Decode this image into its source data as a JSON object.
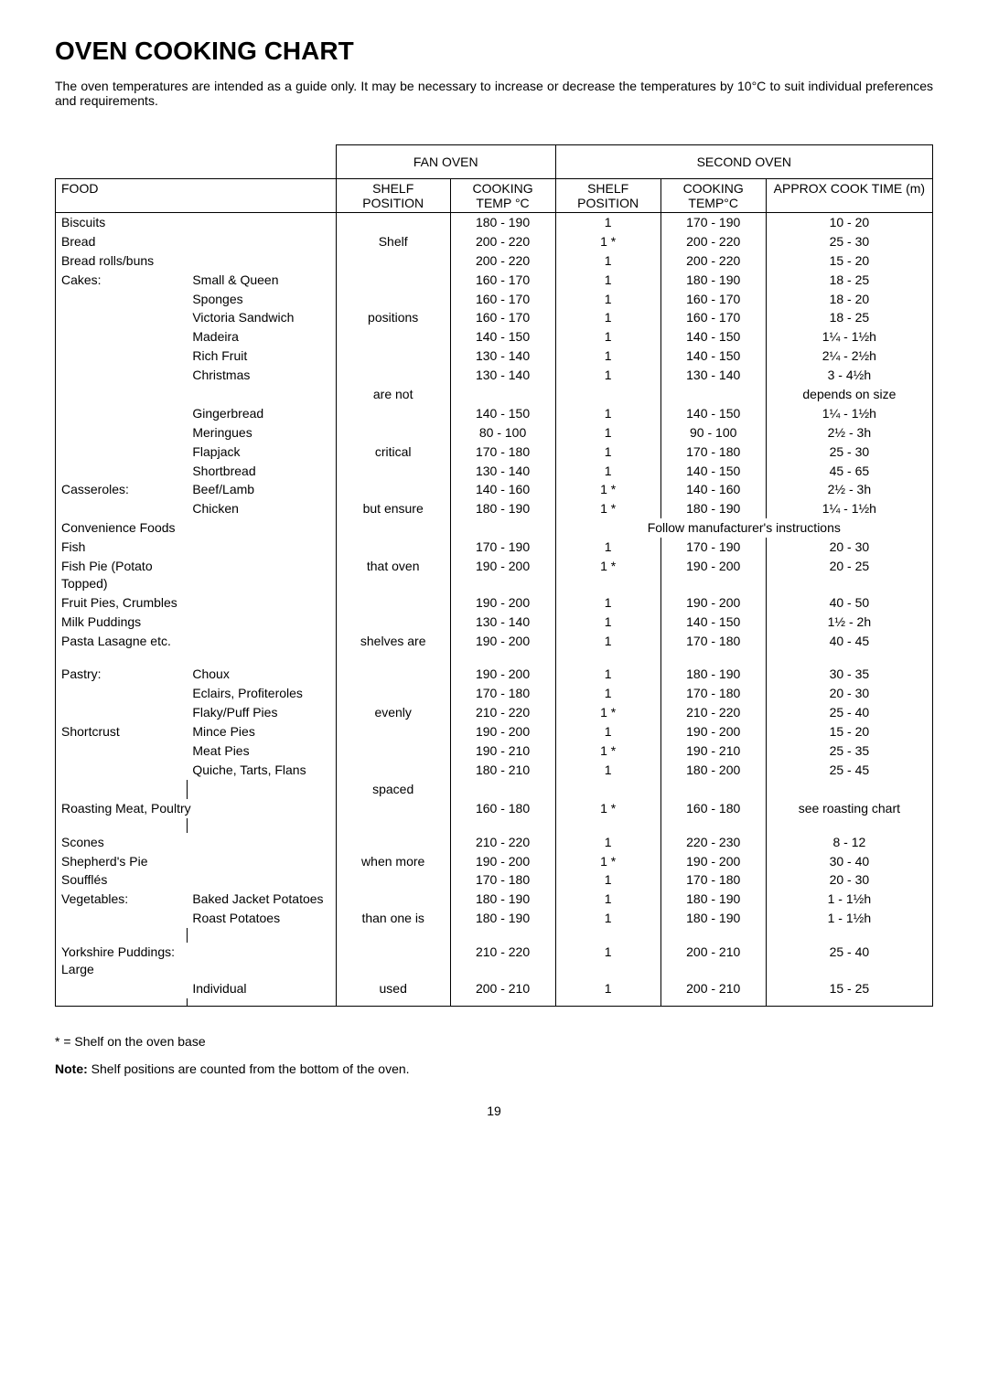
{
  "title": "OVEN COOKING CHART",
  "intro": "The oven temperatures are intended as a guide only. It may be necessary to increase or decrease the temperatures by 10°C to suit individual preferences and requirements.",
  "headers": {
    "fan_oven": "FAN OVEN",
    "second_oven": "SECOND OVEN",
    "food": "FOOD",
    "shelf_position": "SHELF POSITION",
    "cooking_temp": "COOKING TEMP °C",
    "shelf_position2": "SHELF POSITION",
    "cooking_temp2": "COOKING TEMP°C",
    "approx": "APPROX COOK TIME (m)"
  },
  "shelf_note_words": [
    "Shelf",
    "positions",
    "are not",
    "critical",
    "but ensure",
    "that oven",
    "shelves are",
    "evenly",
    "spaced",
    "when more",
    "than one is",
    "used"
  ],
  "rows": [
    {
      "food": "Biscuits",
      "t1": "180 - 190",
      "p": "1",
      "t2": "170 - 190",
      "a": "10 - 20"
    },
    {
      "food": "Bread",
      "t1": "200 - 220",
      "p": "1 *",
      "t2": "200 - 220",
      "a": "25 - 30"
    },
    {
      "food": "Bread rolls/buns",
      "t1": "200 - 220",
      "p": "1",
      "t2": "200 - 220",
      "a": "15 - 20"
    },
    {
      "food": "Cakes:",
      "sub": "Small & Queen",
      "t1": "160 - 170",
      "p": "1",
      "t2": "180 - 190",
      "a": "18 - 25"
    },
    {
      "food": "",
      "sub": "Sponges",
      "t1": "160 - 170",
      "p": "1",
      "t2": "160 - 170",
      "a": "18 - 20"
    },
    {
      "food": "",
      "sub": "Victoria Sandwich",
      "t1": "160 - 170",
      "p": "1",
      "t2": "160 - 170",
      "a": "18 - 25"
    },
    {
      "food": "",
      "sub": "Madeira",
      "t1": "140 - 150",
      "p": "1",
      "t2": "140 - 150",
      "a": "1¼ - 1½h"
    },
    {
      "food": "",
      "sub": "Rich Fruit",
      "t1": "130 - 140",
      "p": "1",
      "t2": "140 - 150",
      "a": "2¼ - 2½h"
    },
    {
      "food": "",
      "sub": "Christmas",
      "t1": "130 - 140",
      "p": "1",
      "t2": "130 - 140",
      "a": "3 - 4½h"
    },
    {
      "food": "",
      "sub": "",
      "t1": "",
      "p": "",
      "t2": "",
      "a": "depends on size"
    },
    {
      "food": "",
      "sub": "Gingerbread",
      "t1": "140 - 150",
      "p": "1",
      "t2": "140 - 150",
      "a": "1¼ - 1½h"
    },
    {
      "food": "",
      "sub": "Meringues",
      "t1": "80 - 100",
      "p": "1",
      "t2": "90 - 100",
      "a": "2½ - 3h"
    },
    {
      "food": "",
      "sub": "Flapjack",
      "t1": "170 - 180",
      "p": "1",
      "t2": "170 - 180",
      "a": "25 - 30"
    },
    {
      "food": "",
      "sub": "Shortbread",
      "t1": "130 - 140",
      "p": "1",
      "t2": "140 - 150",
      "a": "45 - 65"
    },
    {
      "food": "Casseroles:",
      "sub": "Beef/Lamb",
      "t1": "140 - 160",
      "p": "1 *",
      "t2": "140 - 160",
      "a": "2½ - 3h"
    },
    {
      "food": "",
      "sub": "Chicken",
      "t1": "180 - 190",
      "p": "1 *",
      "t2": "180 - 190",
      "a": "1¼ - 1½h"
    }
  ],
  "convenience_label": "Convenience Foods",
  "convenience_note": "Follow manufacturer's instructions",
  "rows2": [
    {
      "food": "Fish",
      "t1": "170 - 190",
      "p": "1",
      "t2": "170 - 190",
      "a": "20 - 30"
    },
    {
      "food": "Fish Pie (Potato Topped)",
      "t1": "190 - 200",
      "p": "1 *",
      "t2": "190 - 200",
      "a": "20 - 25"
    },
    {
      "food": "Fruit Pies, Crumbles",
      "t1": "190 - 200",
      "p": "1",
      "t2": "190 - 200",
      "a": "40 - 50"
    },
    {
      "food": "Milk Puddings",
      "t1": "130 - 140",
      "p": "1",
      "t2": "140 - 150",
      "a": "1½ - 2h"
    },
    {
      "food": "Pasta Lasagne etc.",
      "t1": "190 - 200",
      "p": "1",
      "t2": "170 - 180",
      "a": "40 - 45"
    }
  ],
  "rows3": [
    {
      "food": "Pastry:",
      "sub": "Choux",
      "t1": "190 - 200",
      "p": "1",
      "t2": "180 - 190",
      "a": "30 - 35"
    },
    {
      "food": "",
      "sub": "Eclairs, Profiteroles",
      "t1": "170 - 180",
      "p": "1",
      "t2": "170 - 180",
      "a": "20 - 30"
    },
    {
      "food": "",
      "sub": "Flaky/Puff Pies",
      "t1": "210 - 220",
      "p": "1 *",
      "t2": "210 - 220",
      "a": "25 - 40"
    },
    {
      "food": "Shortcrust",
      "sub": "Mince Pies",
      "t1": "190 - 200",
      "p": "1",
      "t2": "190 - 200",
      "a": "15 - 20"
    },
    {
      "food": "",
      "sub": "Meat Pies",
      "t1": "190 - 210",
      "p": "1 *",
      "t2": "190 - 210",
      "a": "25 - 35"
    },
    {
      "food": "",
      "sub": "Quiche, Tarts, Flans",
      "t1": "180 - 210",
      "p": "1",
      "t2": "180 - 200",
      "a": "25 - 45"
    }
  ],
  "roasting": {
    "food": "Roasting Meat, Poultry",
    "t1": "160 - 180",
    "p": "1 *",
    "t2": "160 - 180",
    "a": "see roasting chart"
  },
  "rows4": [
    {
      "food": "Scones",
      "t1": "210 - 220",
      "p": "1",
      "t2": "220 - 230",
      "a": "8 - 12"
    },
    {
      "food": "Shepherd's Pie",
      "t1": "190 - 200",
      "p": "1 *",
      "t2": "190 - 200",
      "a": "30 - 40"
    },
    {
      "food": "Soufflés",
      "t1": "170 - 180",
      "p": "1",
      "t2": "170 - 180",
      "a": "20 - 30"
    },
    {
      "food": "Vegetables:",
      "sub": "Baked Jacket Potatoes",
      "t1": "180 - 190",
      "p": "1",
      "t2": "180 - 190",
      "a": "1 - 1½h"
    },
    {
      "food": "",
      "sub": "Roast Potatoes",
      "t1": "180 - 190",
      "p": "1",
      "t2": "180 - 190",
      "a": "1 - 1½h"
    }
  ],
  "rows5": [
    {
      "food": "Yorkshire Puddings: Large",
      "t1": "210 - 220",
      "p": "1",
      "t2": "200 - 210",
      "a": "25 - 40"
    },
    {
      "food": "",
      "sub": "Individual",
      "t1": "200 - 210",
      "p": "1",
      "t2": "200 - 210",
      "a": "15 - 25"
    }
  ],
  "footnote1": "* = Shelf on the oven base",
  "footnote2_label": "Note:",
  "footnote2_text": "  Shelf positions are counted from the bottom of the oven.",
  "page_number": "19"
}
